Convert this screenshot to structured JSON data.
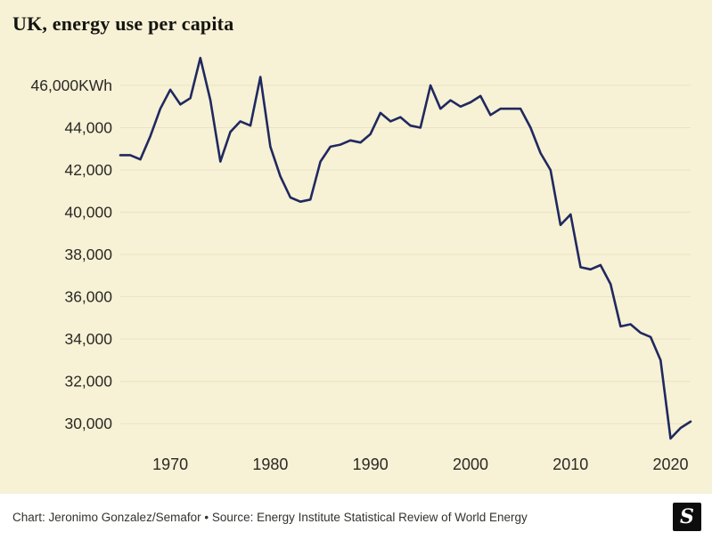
{
  "chart_data": {
    "type": "line",
    "title": "UK, energy use per capita",
    "unit": "KWh",
    "series": [
      {
        "name": "UK energy use per capita (KWh)",
        "x": [
          1965,
          1966,
          1967,
          1968,
          1969,
          1970,
          1971,
          1972,
          1973,
          1974,
          1975,
          1976,
          1977,
          1978,
          1979,
          1980,
          1981,
          1982,
          1983,
          1984,
          1985,
          1986,
          1987,
          1988,
          1989,
          1990,
          1991,
          1992,
          1993,
          1994,
          1995,
          1996,
          1997,
          1998,
          1999,
          2000,
          2001,
          2002,
          2003,
          2004,
          2005,
          2006,
          2007,
          2008,
          2009,
          2010,
          2011,
          2012,
          2013,
          2014,
          2015,
          2016,
          2017,
          2018,
          2019,
          2020,
          2021,
          2022
        ],
        "values": [
          42700,
          42700,
          42500,
          43600,
          44900,
          45800,
          45100,
          45400,
          47300,
          45300,
          42400,
          43800,
          44300,
          44100,
          46400,
          43100,
          41700,
          40700,
          40500,
          40600,
          42400,
          43100,
          43200,
          43400,
          43300,
          43700,
          44700,
          44300,
          44500,
          44100,
          44000,
          46000,
          44900,
          45300,
          45000,
          45200,
          45500,
          44600,
          44900,
          44900,
          44900,
          44000,
          42800,
          42000,
          39400,
          39900,
          37400,
          37300,
          37500,
          36600,
          34600,
          34700,
          34300,
          34100,
          33000,
          29300,
          29800,
          30100
        ]
      }
    ],
    "xlim": [
      1965,
      2022
    ],
    "ylim": [
      29000,
      47600
    ],
    "yticks": [
      {
        "value": 30000,
        "label": "30,000"
      },
      {
        "value": 32000,
        "label": "32,000"
      },
      {
        "value": 34000,
        "label": "34,000"
      },
      {
        "value": 36000,
        "label": "36,000"
      },
      {
        "value": 38000,
        "label": "38,000"
      },
      {
        "value": 40000,
        "label": "40,000"
      },
      {
        "value": 42000,
        "label": "42,000"
      },
      {
        "value": 44000,
        "label": "44,000"
      },
      {
        "value": 46000,
        "label": "46,000KWh"
      }
    ],
    "xticks": [
      {
        "value": 1970,
        "label": "1970"
      },
      {
        "value": 1980,
        "label": "1980"
      },
      {
        "value": 1990,
        "label": "1990"
      },
      {
        "value": 2000,
        "label": "2000"
      },
      {
        "value": 2010,
        "label": "2010"
      },
      {
        "value": 2020,
        "label": "2020"
      }
    ],
    "grid": "horizontal-faint",
    "legend_position": "none",
    "colors": {
      "line": "#20295f",
      "background": "#f7f1d5",
      "grid": "#ebe3c2",
      "tick_text": "#2a2925",
      "title_text": "#14140f"
    }
  },
  "footer": {
    "credit": "Chart: Jeronimo Gonzalez/Semafor • Source: Energy Institute Statistical Review of World Energy",
    "logo_letter": "S"
  }
}
